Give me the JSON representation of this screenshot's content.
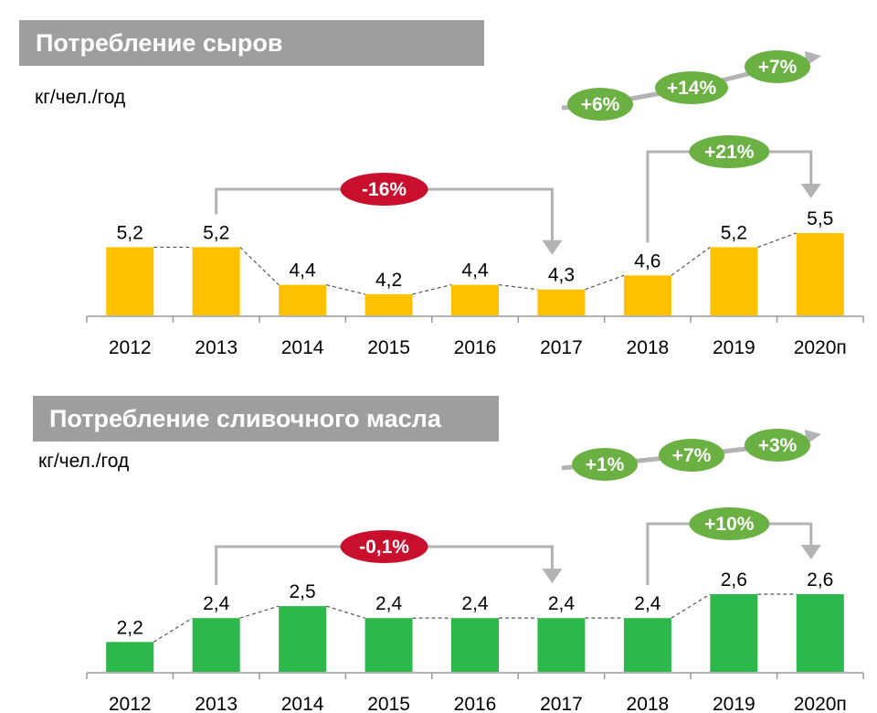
{
  "chart_data": [
    {
      "type": "bar",
      "title": "Потребление сыров",
      "ylabel": "кг/чел./год",
      "categories": [
        "2012",
        "2013",
        "2014",
        "2015",
        "2016",
        "2017",
        "2018",
        "2019",
        "2020п"
      ],
      "values": [
        5.2,
        5.2,
        4.4,
        4.2,
        4.4,
        4.3,
        4.6,
        5.2,
        5.5
      ],
      "value_labels": [
        "5,2",
        "5,2",
        "4,4",
        "4,2",
        "4,4",
        "4,3",
        "4,6",
        "5,2",
        "5,5"
      ],
      "bar_color": "#ffc000",
      "connector_line": "dashed",
      "annotations": [
        {
          "type": "bracket",
          "from": "2013",
          "to": "2017",
          "label": "-16%",
          "color": "#c8102e"
        },
        {
          "type": "bracket",
          "from": "2018",
          "to": "2020п",
          "label": "+21%",
          "color": "#6ab042"
        }
      ],
      "yoy_changes": [
        {
          "label": "+6%",
          "period": "2018"
        },
        {
          "label": "+14%",
          "period": "2019"
        },
        {
          "label": "+7%",
          "period": "2020п"
        }
      ],
      "yoy_color": "#6ab042"
    },
    {
      "type": "bar",
      "title": "Потребление сливочного масла",
      "ylabel": "кг/чел./год",
      "categories": [
        "2012",
        "2013",
        "2014",
        "2015",
        "2016",
        "2017",
        "2018",
        "2019",
        "2020п"
      ],
      "values": [
        2.2,
        2.4,
        2.5,
        2.4,
        2.4,
        2.4,
        2.4,
        2.6,
        2.6
      ],
      "value_labels": [
        "2,2",
        "2,4",
        "2,5",
        "2,4",
        "2,4",
        "2,4",
        "2,4",
        "2,6",
        "2,6"
      ],
      "bar_color": "#2db84b",
      "connector_line": "dashed",
      "annotations": [
        {
          "type": "bracket",
          "from": "2013",
          "to": "2017",
          "label": "-0,1%",
          "color": "#c8102e"
        },
        {
          "type": "bracket",
          "from": "2018",
          "to": "2020п",
          "label": "+10%",
          "color": "#6ab042"
        }
      ],
      "yoy_changes": [
        {
          "label": "+1%",
          "period": "2018"
        },
        {
          "label": "+7%",
          "period": "2019"
        },
        {
          "label": "+3%",
          "period": "2020п"
        }
      ],
      "yoy_color": "#6ab042"
    }
  ]
}
